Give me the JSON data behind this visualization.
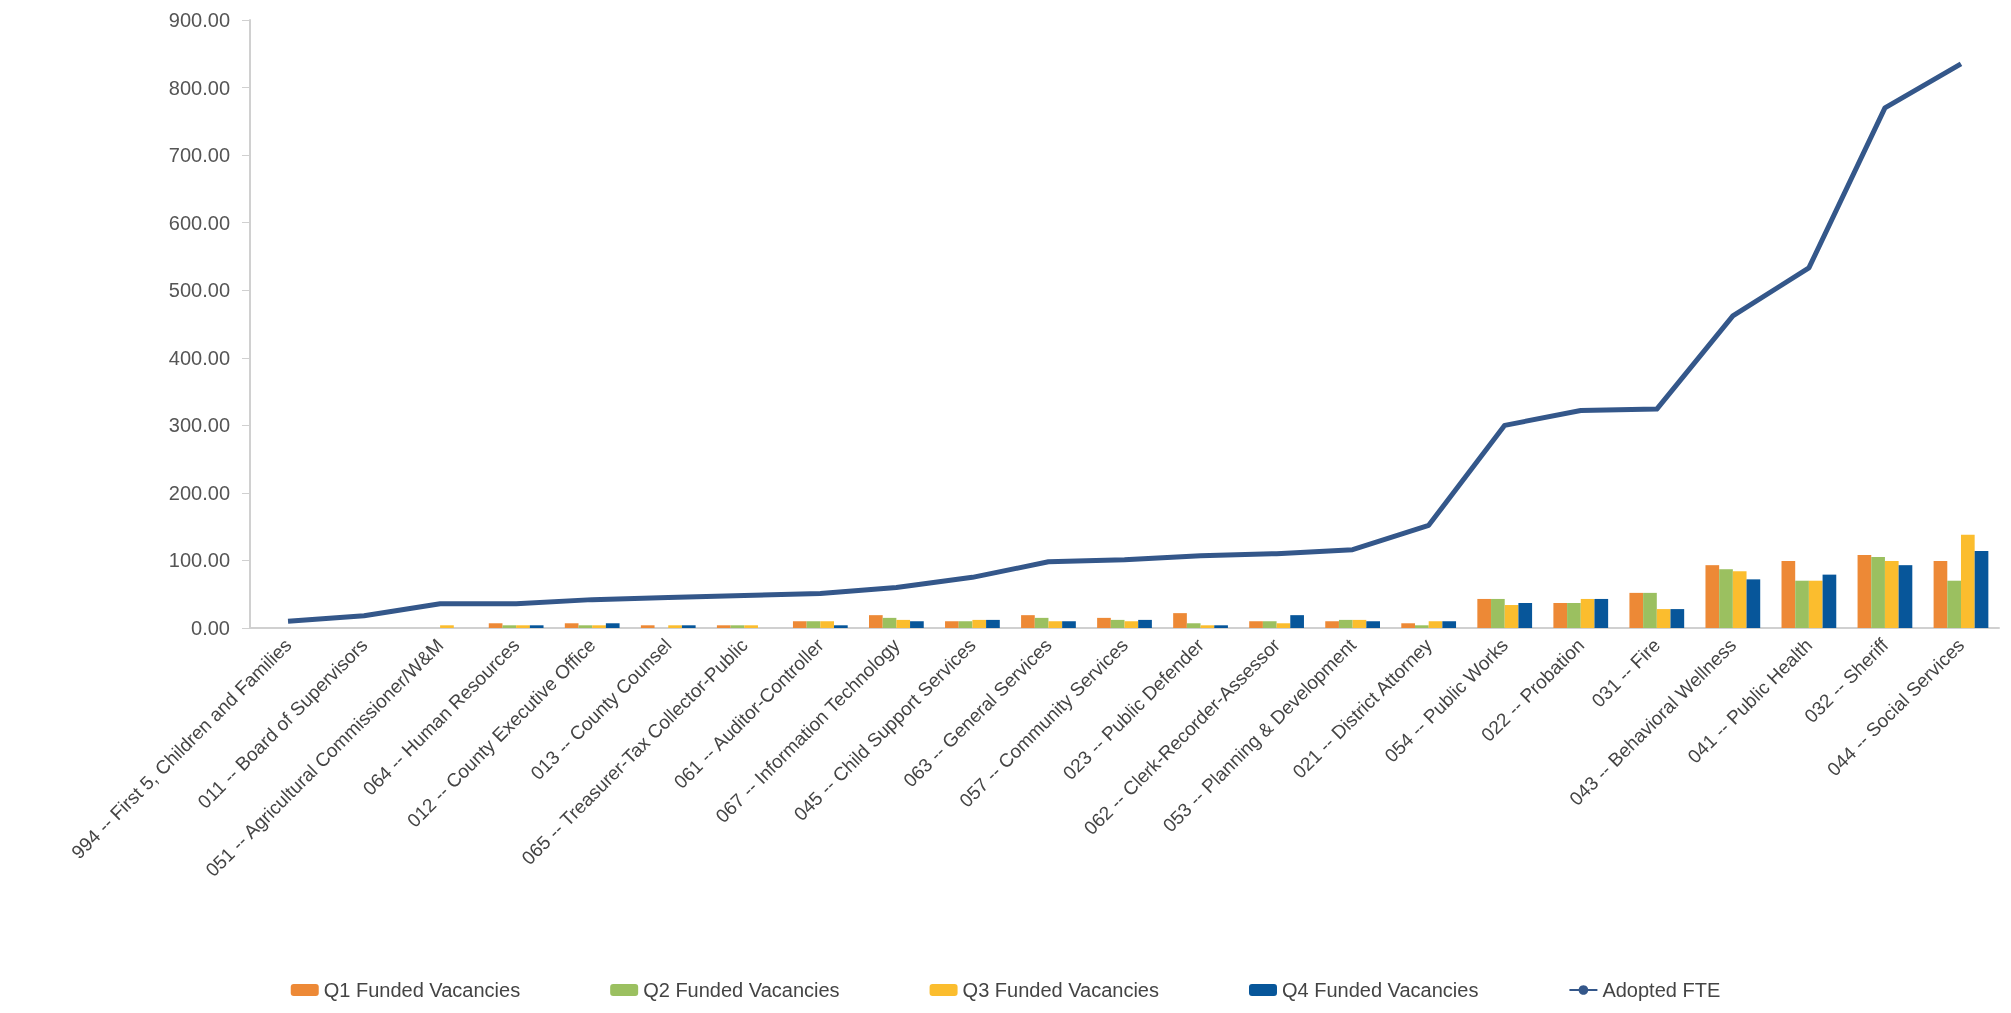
{
  "chart_data": {
    "type": "bar",
    "categories": [
      "994 -- First 5, Children and Families",
      "011 -- Board of Supervisors",
      "051 -- Agricultural Commissioner/W&M",
      "064 -- Human Resources",
      "012 -- County Executive Office",
      "013 -- County Counsel",
      "065 -- Treasurer-Tax Collector-Public",
      "061 -- Auditor-Controller",
      "067 -- Information Technology",
      "045 -- Child Support Services",
      "063 -- General Services",
      "057 -- Community Services",
      "023 -- Public Defender",
      "062 -- Clerk-Recorder-Assessor",
      "053 -- Planning & Development",
      "021 -- District Attorney",
      "054 -- Public Works",
      "022 -- Probation",
      "031 -- Fire",
      "043 -- Behavioral Wellness",
      "041 -- Public Health",
      "032 -- Sheriff",
      "044 -- Social Services"
    ],
    "series": [
      {
        "name": "Q1 Funded Vacancies",
        "color": "#ed8936",
        "values": [
          0,
          0,
          0,
          7,
          7,
          4,
          4,
          10,
          19,
          10,
          19,
          15,
          22,
          10,
          10,
          7,
          43,
          37,
          52,
          93,
          99,
          108,
          99
        ]
      },
      {
        "name": "Q2 Funded Vacancies",
        "color": "#9bc060",
        "values": [
          0,
          0,
          0,
          4,
          4,
          0,
          4,
          10,
          15,
          10,
          15,
          12,
          7,
          10,
          12,
          4,
          43,
          37,
          52,
          87,
          70,
          105,
          70
        ]
      },
      {
        "name": "Q3 Funded Vacancies",
        "color": "#fbbd2e",
        "values": [
          0,
          0,
          4,
          4,
          4,
          4,
          4,
          10,
          12,
          12,
          10,
          10,
          4,
          7,
          12,
          10,
          34,
          43,
          28,
          84,
          70,
          99,
          138
        ]
      },
      {
        "name": "Q4 Funded Vacancies",
        "color": "#07569a",
        "values": [
          0,
          0,
          0,
          4,
          7,
          4,
          0,
          4,
          10,
          12,
          10,
          12,
          4,
          19,
          10,
          10,
          37,
          43,
          28,
          72,
          79,
          93,
          114
        ]
      },
      {
        "name": "Adopted FTE",
        "type": "line",
        "color": "#34578a",
        "values": [
          10,
          18,
          36,
          36,
          42,
          45,
          48,
          51,
          60,
          75,
          98,
          101,
          107,
          110,
          116,
          152,
          300,
          322,
          324,
          462,
          533,
          770,
          835
        ]
      }
    ],
    "ylim": [
      0,
      900
    ],
    "yticks": [
      {
        "value": 0,
        "label": "0.00"
      },
      {
        "value": 100,
        "label": "100.00"
      },
      {
        "value": 200,
        "label": "200.00"
      },
      {
        "value": 300,
        "label": "300.00"
      },
      {
        "value": 400,
        "label": "400.00"
      },
      {
        "value": 500,
        "label": "500.00"
      },
      {
        "value": 600,
        "label": "600.00"
      },
      {
        "value": 700,
        "label": "700.00"
      },
      {
        "value": 800,
        "label": "800.00"
      },
      {
        "value": 900,
        "label": "900.00"
      }
    ],
    "grid": false,
    "legend": "bottom",
    "marker": "none"
  }
}
